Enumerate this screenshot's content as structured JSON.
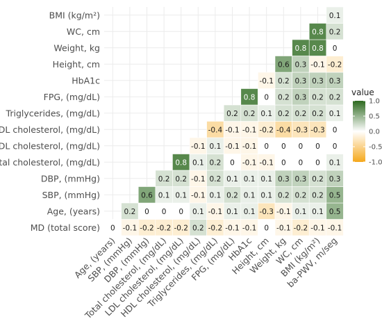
{
  "chart_data": {
    "type": "heatmap",
    "title": "",
    "xlabel": "",
    "ylabel": "",
    "row_labels": [
      "MD (total score)",
      "Age, (years)",
      "SBP, (mmHg)",
      "DBP, (mmHg)",
      "Total cholesterol, (mg/dL)",
      "LDL cholesterol, (mg/dL)",
      "HDL cholesterol, (mg/dL)",
      "Triglycerides, (mg/dL)",
      "FPG, (mg/dL)",
      "HbA1c",
      "Height, cm",
      "Weight, kg",
      "WC, cm",
      "BMI (kg/m²)"
    ],
    "col_labels": [
      "Age, (years)",
      "SBP, (mmHg)",
      "DBP, (mmHg)",
      "Total cholesterol, (mg/dL)",
      "LDL cholesterol, (mg/dL)",
      "HDL cholesterol, (mg/dL)",
      "Triglycerides, (mg/dL)",
      "FPG, (mg/dL)",
      "HbA1c",
      "Height, cm",
      "Weight, kg",
      "WC, cm",
      "BMI (kg/m²)",
      "ba-PWV, m/seg"
    ],
    "values": [
      [
        0,
        -0.1,
        -0.2,
        -0.2,
        -0.2,
        0.2,
        -0.2,
        -0.1,
        -0.1,
        0,
        -0.1,
        -0.2,
        -0.1,
        -0.1
      ],
      [
        0.2,
        0,
        0,
        0,
        0.1,
        -0.1,
        0.1,
        0.1,
        -0.3,
        -0.1,
        0.1,
        0.1,
        0.5
      ],
      [
        0.6,
        0.1,
        0.1,
        -0.1,
        0.1,
        0.2,
        0.1,
        0.1,
        0.2,
        0.2,
        0.2,
        0.5
      ],
      [
        0.2,
        0.2,
        -0.1,
        0.2,
        0.1,
        0.1,
        0.1,
        0.3,
        0.3,
        0.2,
        0.3
      ],
      [
        0.8,
        0.1,
        0.2,
        0,
        -0.1,
        -0.1,
        0,
        0,
        0,
        0.1
      ],
      [
        -0.1,
        0.1,
        -0.1,
        -0.1,
        0,
        0,
        0,
        0,
        0
      ],
      [
        -0.4,
        -0.1,
        -0.1,
        -0.2,
        -0.4,
        -0.3,
        -0.3,
        0
      ],
      [
        0.2,
        0.2,
        0.1,
        0.2,
        0.2,
        0.2,
        0.1
      ],
      [
        0.8,
        0,
        0.2,
        0.3,
        0.2,
        0.2
      ],
      [
        -0.1,
        0.2,
        0.3,
        0.3,
        0.3
      ],
      [
        0.6,
        0.3,
        -0.1,
        -0.2
      ],
      [
        0.8,
        0.8,
        0
      ],
      [
        0.8,
        0.2
      ],
      [
        0.1
      ]
    ],
    "legend": {
      "title": "value",
      "ticks": [
        1.0,
        0.5,
        0.0,
        -0.5,
        -1.0
      ],
      "tick_labels": [
        "1.0",
        "0.5",
        "0.0",
        "-0.5",
        "-1.0"
      ],
      "placement": "right"
    },
    "colors": {
      "high": "#2d6a1f",
      "mid": "#ffffff",
      "low": "#f5a81c"
    },
    "color_range": [
      -1,
      1
    ],
    "grid": true
  }
}
